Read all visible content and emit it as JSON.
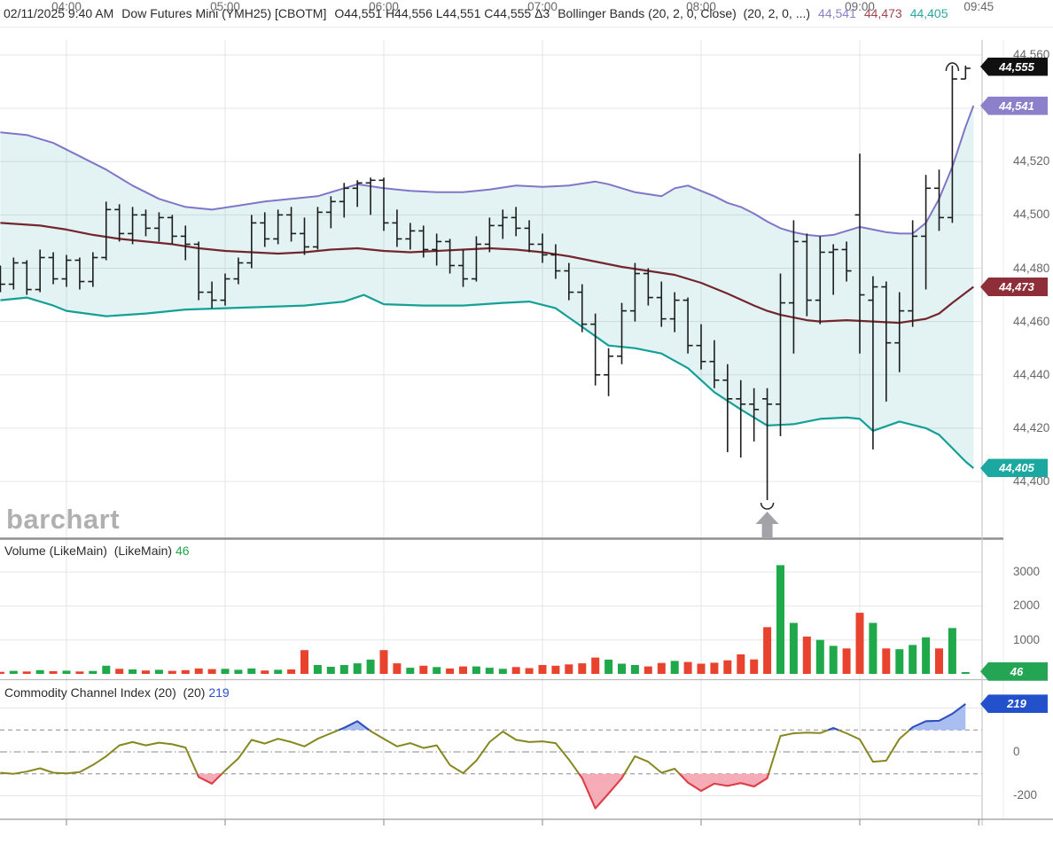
{
  "header": {
    "datetime": "02/11/2025 9:40 AM",
    "symbol": "Dow Futures Mini (YMH25) [CBOTM]",
    "ohlc": "O44,551 H44,556 L44,551 C44,555 Δ3",
    "study": "Bollinger Bands (20, 2, 0, Close)  (20, 2, 0, ...)",
    "upper_value": "44,541",
    "middle_value": "44,473",
    "lower_value": "44,405"
  },
  "watermark": "barchart",
  "volume_panel": {
    "title": "Volume (LikeMain)  (LikeMain) ",
    "value": "46"
  },
  "cci_panel": {
    "title": "Commodity Channel Index (20)  (20) ",
    "value": "219"
  },
  "axis": {
    "price_labels": [
      {
        "label": "44,560",
        "value": 44560
      },
      {
        "label": "44,520",
        "value": 44520
      },
      {
        "label": "44,500",
        "value": 44500
      },
      {
        "label": "44,480",
        "value": 44480
      },
      {
        "label": "44,460",
        "value": 44460
      },
      {
        "label": "44,440",
        "value": 44440
      },
      {
        "label": "44,420",
        "value": 44420
      },
      {
        "label": "44,400",
        "value": 44400
      }
    ],
    "volume_labels": [
      {
        "label": "3000",
        "value": 3000
      },
      {
        "label": "2000",
        "value": 2000
      },
      {
        "label": "1000",
        "value": 1000
      }
    ],
    "cci_labels": [
      {
        "label": "0",
        "value": 0
      },
      {
        "label": "-200",
        "value": -200
      }
    ],
    "time_labels": [
      {
        "label": "04:00",
        "bar": 5
      },
      {
        "label": "05:00",
        "bar": 17
      },
      {
        "label": "06:00",
        "bar": 29
      },
      {
        "label": "07:00",
        "bar": 41
      },
      {
        "label": "08:00",
        "bar": 53
      },
      {
        "label": "09:00",
        "bar": 65
      },
      {
        "label": "09:45",
        "bar": 74
      }
    ]
  },
  "badges": {
    "last": {
      "label": "44,555",
      "price": 44555,
      "color": "#101010"
    },
    "bb_upper": {
      "label": "44,541",
      "price": 44541,
      "color": "#8d80ca"
    },
    "bb_middle": {
      "label": "44,473",
      "price": 44473,
      "color": "#8e2e38"
    },
    "bb_lower": {
      "label": "44,405",
      "price": 44405,
      "color": "#1aa8a0"
    },
    "volume": {
      "label": "46",
      "value": 46,
      "color": "#23a553"
    },
    "cci": {
      "label": "219",
      "value": 219,
      "color": "#2351cb"
    }
  },
  "colors": {
    "bar": "#1d1d1d",
    "band_upper": "#8076c8",
    "band_middle": "#74262e",
    "band_lower": "#14a096",
    "band_fill": "rgba(23,160,153,0.12)",
    "vol_up": "#1fa94a",
    "vol_down": "#e8432e",
    "cci_line": "#87871f",
    "cci_high_line": "#2d4fc9",
    "cci_high_fill": "#a9bdf0",
    "cci_low_line": "#e23d4e",
    "cci_low_fill": "#f6acb6",
    "grid": "#e5e5e5",
    "axis_line": "#9a9a9a",
    "arrow": "#a2a2a8"
  },
  "chart_data": [
    {
      "type": "ohlc-bars",
      "title": "Dow Futures Mini (YMH25) 5-minute bars with Bollinger Bands (20,2)",
      "ylim": [
        44392,
        44562
      ],
      "x": [
        "03:35",
        "03:40",
        "03:45",
        "03:50",
        "03:55",
        "04:00",
        "04:05",
        "04:10",
        "04:15",
        "04:20",
        "04:25",
        "04:30",
        "04:35",
        "04:40",
        "04:45",
        "04:50",
        "04:55",
        "05:00",
        "05:05",
        "05:10",
        "05:15",
        "05:20",
        "05:25",
        "05:30",
        "05:35",
        "05:40",
        "05:45",
        "05:50",
        "05:55",
        "06:00",
        "06:05",
        "06:10",
        "06:15",
        "06:20",
        "06:25",
        "06:30",
        "06:35",
        "06:40",
        "06:45",
        "06:50",
        "06:55",
        "07:00",
        "07:05",
        "07:10",
        "07:15",
        "07:20",
        "07:25",
        "07:30",
        "07:35",
        "07:40",
        "07:45",
        "07:50",
        "07:55",
        "08:00",
        "08:05",
        "08:10",
        "08:15",
        "08:20",
        "08:25",
        "08:30",
        "08:35",
        "08:40",
        "08:45",
        "08:50",
        "08:55",
        "09:00",
        "09:05",
        "09:10",
        "09:15",
        "09:20",
        "09:25",
        "09:30",
        "09:35",
        "09:40"
      ],
      "open": [
        44478,
        44474,
        44482,
        44472,
        44484,
        44476,
        44483,
        44475,
        44484,
        44502,
        44493,
        44500,
        44495,
        44499,
        44492,
        44489,
        44471,
        44468,
        44476,
        44482,
        44497,
        44491,
        44500,
        44493,
        44488,
        44501,
        44505,
        44510,
        44512,
        44513,
        44497,
        44491,
        44494,
        44487,
        44490,
        44481,
        44476,
        44489,
        44496,
        44499,
        44495,
        44489,
        44485,
        44479,
        44471,
        44459,
        44440,
        44447,
        44464,
        44478,
        44469,
        44461,
        44468,
        44451,
        44445,
        44438,
        44431,
        44429,
        44431,
        44429,
        44467,
        44490,
        44468,
        44486,
        44487,
        44500,
        44468,
        44473,
        44452,
        44464,
        44492,
        44510,
        44499,
        44551
      ],
      "high": [
        44481,
        44484,
        44483,
        44487,
        44486,
        44485,
        44484,
        44486,
        44505,
        44504,
        44503,
        44502,
        44501,
        44500,
        44496,
        44490,
        44475,
        44478,
        44484,
        44500,
        44501,
        44502,
        44503,
        44499,
        44503,
        44507,
        44512,
        44513,
        44514,
        44514,
        44502,
        44497,
        44496,
        44493,
        44491,
        44487,
        44492,
        44499,
        44502,
        44503,
        44498,
        44493,
        44489,
        44482,
        44474,
        44463,
        44450,
        44467,
        44482,
        44480,
        44475,
        44471,
        44469,
        44459,
        44453,
        44444,
        44438,
        44435,
        44435,
        44478,
        44498,
        44493,
        44492,
        44489,
        44490,
        44523,
        44477,
        44475,
        44471,
        44498,
        44515,
        44517,
        44556,
        44556
      ],
      "low": [
        44471,
        44472,
        44470,
        44471,
        44474,
        44473,
        44472,
        44473,
        44483,
        44490,
        44489,
        44492,
        44490,
        44489,
        44483,
        44468,
        44465,
        44466,
        44474,
        44480,
        44488,
        44489,
        44490,
        44485,
        44487,
        44495,
        44499,
        44503,
        44500,
        44494,
        44488,
        44487,
        44484,
        44481,
        44478,
        44473,
        44475,
        44486,
        44491,
        44492,
        44486,
        44482,
        44476,
        44468,
        44456,
        44436,
        44432,
        44444,
        44460,
        44466,
        44458,
        44456,
        44448,
        44442,
        44435,
        44411,
        44409,
        44415,
        44393,
        44417,
        44448,
        44462,
        44459,
        44470,
        44475,
        44448,
        44412,
        44430,
        44441,
        44458,
        44472,
        44494,
        44497,
        44551
      ],
      "close": [
        44474,
        44482,
        44472,
        44484,
        44476,
        44483,
        44475,
        44484,
        44502,
        44493,
        44500,
        44495,
        44499,
        44492,
        44489,
        44471,
        44468,
        44476,
        44482,
        44497,
        44491,
        44500,
        44493,
        44488,
        44501,
        44505,
        44510,
        44512,
        44513,
        44497,
        44491,
        44494,
        44487,
        44490,
        44481,
        44476,
        44489,
        44496,
        44499,
        44495,
        44489,
        44485,
        44479,
        44471,
        44459,
        44440,
        44447,
        44464,
        44478,
        44469,
        44461,
        44468,
        44451,
        44445,
        44438,
        44431,
        44429,
        44427,
        44429,
        44467,
        44490,
        44468,
        44486,
        44487,
        44479,
        44470,
        44473,
        44452,
        44464,
        44492,
        44510,
        44499,
        44551,
        44555
      ],
      "overlays": {
        "bollinger_upper": [
          [
            0,
            44531
          ],
          [
            2,
            44530
          ],
          [
            4,
            44527
          ],
          [
            6,
            44522
          ],
          [
            8,
            44517
          ],
          [
            10,
            44511
          ],
          [
            12,
            44506
          ],
          [
            14,
            44503
          ],
          [
            16,
            44502
          ],
          [
            18,
            44503.5
          ],
          [
            20,
            44505
          ],
          [
            22,
            44506
          ],
          [
            24,
            44507
          ],
          [
            26,
            44510
          ],
          [
            27,
            44511.5
          ],
          [
            29,
            44510
          ],
          [
            31,
            44509
          ],
          [
            33,
            44508.5
          ],
          [
            35,
            44508.5
          ],
          [
            37,
            44509.5
          ],
          [
            39,
            44511
          ],
          [
            41,
            44510.5
          ],
          [
            43,
            44511
          ],
          [
            45,
            44512.5
          ],
          [
            46,
            44511.5
          ],
          [
            47,
            44510
          ],
          [
            48,
            44508.5
          ],
          [
            50,
            44507
          ],
          [
            51,
            44510
          ],
          [
            52,
            44511
          ],
          [
            53,
            44509
          ],
          [
            54,
            44507
          ],
          [
            55,
            44504.5
          ],
          [
            56,
            44503
          ],
          [
            57,
            44500.5
          ],
          [
            58,
            44497.5
          ],
          [
            59,
            44495
          ],
          [
            60,
            44493.5
          ],
          [
            61,
            44492.5
          ],
          [
            62,
            44492
          ],
          [
            63,
            44492.5
          ],
          [
            64,
            44494
          ],
          [
            65,
            44495.5
          ],
          [
            66,
            44494.5
          ],
          [
            67,
            44493.5
          ],
          [
            68,
            44493
          ],
          [
            69,
            44493
          ],
          [
            70,
            44497
          ],
          [
            71,
            44506
          ],
          [
            72,
            44518
          ],
          [
            73,
            44533
          ],
          [
            73.6,
            44541
          ]
        ],
        "bollinger_middle": [
          [
            0,
            44497
          ],
          [
            3,
            44496
          ],
          [
            5,
            44494.5
          ],
          [
            7,
            44492.5
          ],
          [
            9,
            44491
          ],
          [
            11,
            44490
          ],
          [
            13,
            44489
          ],
          [
            15,
            44487.5
          ],
          [
            17,
            44486.5
          ],
          [
            19,
            44486
          ],
          [
            21,
            44485.5
          ],
          [
            23,
            44486
          ],
          [
            25,
            44487
          ],
          [
            27,
            44487.5
          ],
          [
            29,
            44486.5
          ],
          [
            31,
            44486
          ],
          [
            33,
            44486.5
          ],
          [
            35,
            44487
          ],
          [
            37,
            44487.5
          ],
          [
            39,
            44487
          ],
          [
            41,
            44486
          ],
          [
            43,
            44484.5
          ],
          [
            45,
            44482.5
          ],
          [
            47,
            44480.5
          ],
          [
            49,
            44479
          ],
          [
            51,
            44477.5
          ],
          [
            53,
            44474.5
          ],
          [
            55,
            44470.5
          ],
          [
            57,
            44466
          ],
          [
            58,
            44464
          ],
          [
            59,
            44462.5
          ],
          [
            60,
            44461.5
          ],
          [
            61,
            44460.5
          ],
          [
            62,
            44460
          ],
          [
            64,
            44460.5
          ],
          [
            66,
            44460
          ],
          [
            68,
            44459.5
          ],
          [
            70,
            44461
          ],
          [
            71,
            44463
          ],
          [
            72,
            44467
          ],
          [
            73.6,
            44473
          ]
        ],
        "bollinger_lower": [
          [
            0,
            44468
          ],
          [
            2,
            44469
          ],
          [
            4,
            44466
          ],
          [
            5,
            44464
          ],
          [
            8,
            44462
          ],
          [
            11,
            44463
          ],
          [
            14,
            44464.5
          ],
          [
            17,
            44465
          ],
          [
            20,
            44465.5
          ],
          [
            23,
            44466
          ],
          [
            26,
            44467.5
          ],
          [
            27.5,
            44470
          ],
          [
            29,
            44466.5
          ],
          [
            32,
            44466
          ],
          [
            35,
            44466
          ],
          [
            38,
            44467
          ],
          [
            40,
            44467.5
          ],
          [
            42,
            44465
          ],
          [
            44,
            44458
          ],
          [
            46,
            44451
          ],
          [
            48,
            44450
          ],
          [
            50,
            44448
          ],
          [
            52,
            44442.5
          ],
          [
            54,
            44433.5
          ],
          [
            56,
            44427
          ],
          [
            58,
            44421
          ],
          [
            60,
            44421.5
          ],
          [
            62,
            44423.5
          ],
          [
            64,
            44424
          ],
          [
            65,
            44423.5
          ],
          [
            66,
            44419
          ],
          [
            68,
            44422.5
          ],
          [
            70,
            44420
          ],
          [
            71,
            44417.5
          ],
          [
            72,
            44412.5
          ],
          [
            73,
            44407.5
          ],
          [
            73.6,
            44405
          ]
        ]
      },
      "annotations": [
        {
          "type": "arc-low",
          "bar": 58,
          "price": 44392
        },
        {
          "type": "up-arrow",
          "bar": 58
        },
        {
          "type": "arc-high",
          "bar": 72,
          "price": 44557
        }
      ]
    },
    {
      "type": "bar",
      "title": "Volume (LikeMain)",
      "ylim": [
        0,
        3900
      ],
      "values": [
        60,
        90,
        70,
        110,
        80,
        95,
        70,
        85,
        240,
        150,
        130,
        100,
        120,
        90,
        110,
        160,
        140,
        150,
        120,
        160,
        100,
        120,
        130,
        700,
        260,
        210,
        260,
        310,
        420,
        700,
        310,
        180,
        240,
        200,
        160,
        220,
        220,
        180,
        150,
        200,
        170,
        260,
        240,
        280,
        310,
        480,
        420,
        300,
        260,
        220,
        320,
        380,
        350,
        300,
        330,
        400,
        575,
        425,
        1375,
        3200,
        1500,
        1100,
        1000,
        825,
        750,
        1800,
        1500,
        750,
        725,
        850,
        1075,
        750,
        1350,
        46
      ],
      "last_value": 46
    },
    {
      "type": "line",
      "title": "Commodity Channel Index (20)",
      "ylim": [
        -320,
        320
      ],
      "thresholds": {
        "upper": 100,
        "zero": 0,
        "lower": -100
      },
      "values": [
        -95,
        -100,
        -90,
        -75,
        -95,
        -98,
        -92,
        -60,
        -20,
        30,
        45,
        30,
        42,
        35,
        20,
        -115,
        -145,
        -85,
        -30,
        55,
        38,
        60,
        45,
        25,
        60,
        85,
        110,
        140,
        95,
        60,
        25,
        40,
        18,
        30,
        -60,
        -97,
        -40,
        45,
        93,
        55,
        45,
        48,
        40,
        -35,
        -120,
        -258,
        -190,
        -120,
        -20,
        -45,
        -95,
        -77,
        -140,
        -178,
        -145,
        -155,
        -142,
        -158,
        -120,
        73,
        85,
        88,
        86,
        109,
        85,
        57,
        -45,
        -40,
        60,
        113,
        140,
        142,
        174,
        219
      ],
      "last_value": 219
    }
  ]
}
